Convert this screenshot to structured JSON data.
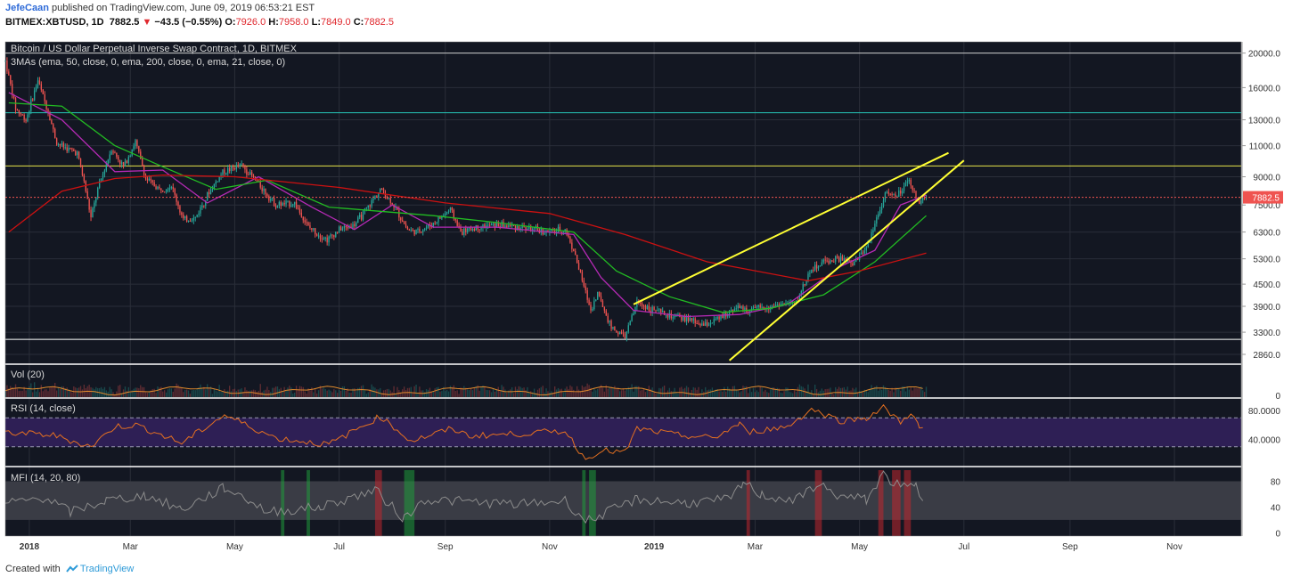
{
  "header": {
    "author": "JefeCaan",
    "published_text": "published on TradingView.com, June 09, 2019 06:53:21 EST",
    "symbol": "BITMEX:XBTUSD, 1D",
    "last": "7882.5",
    "change_arrow": "▼",
    "change": "−43.5 (−0.55%)",
    "open_label": "O:",
    "open": "7926.0",
    "high_label": "H:",
    "high": "7958.0",
    "low_label": "L:",
    "low": "7849.0",
    "close_label": "C:",
    "close": "7882.5"
  },
  "footer": {
    "created_with": "Created with",
    "brand": "TradingView"
  },
  "colors": {
    "background": "#131722",
    "grid": "#2a2e39",
    "up": "#26a69a",
    "down": "#ef5350",
    "ema50": "#22bb22",
    "ema200": "#cc1111",
    "ema21": "#b52ab5",
    "trendline": "#ffff33",
    "level_teal": "#26c6b8",
    "level_yellow": "#e6e44a",
    "volume_ma": "#e08a2c",
    "rsi_line": "#e57020",
    "rsi_band": "#2e1f55",
    "mfi_line": "#8c8c8c",
    "mfi_band": "#3a3c45"
  },
  "chart_data": [
    {
      "type": "candlestick",
      "title": "Bitcoin / US Dollar Perpetual Inverse Swap Contract, 1D, BITMEX",
      "study_label": "3MAs (ema, 50, close, 0, ema, 200, close, 0, ema, 21, close, 0)",
      "y_scale": "log",
      "y_ticks": [
        "20000.0",
        "16000.0",
        "13000.0",
        "11000.0",
        "9000.0",
        "7500.0",
        "6300.0",
        "5300.0",
        "4500.0",
        "3900.0",
        "3300.0",
        "2860.0"
      ],
      "y_tick_values": [
        20000,
        16000,
        13000,
        11000,
        9000,
        7500,
        6300,
        5300,
        4500,
        3900,
        3300,
        2860
      ],
      "last_price_label": "7882.5",
      "last_price": 7882.5,
      "x_ticks": [
        "2018",
        "Mar",
        "May",
        "Jul",
        "Sep",
        "Nov",
        "2019",
        "Mar",
        "May",
        "Jul",
        "Sep",
        "Nov"
      ],
      "x_tick_dates": [
        "2018-01-01",
        "2018-03-01",
        "2018-05-01",
        "2018-07-01",
        "2018-09-01",
        "2018-11-01",
        "2019-01-01",
        "2019-03-01",
        "2019-05-01",
        "2019-07-01",
        "2019-09-01",
        "2019-11-01"
      ],
      "x_range": [
        "2017-12-18",
        "2019-12-10"
      ],
      "y_range": [
        2700,
        21500
      ],
      "price_path": [
        [
          "2017-12-18",
          19000
        ],
        [
          "2017-12-24",
          14000
        ],
        [
          "2017-12-30",
          13000
        ],
        [
          "2018-01-06",
          16800
        ],
        [
          "2018-01-12",
          13700
        ],
        [
          "2018-01-17",
          11200
        ],
        [
          "2018-01-23",
          10800
        ],
        [
          "2018-01-29",
          10500
        ],
        [
          "2018-02-02",
          8700
        ],
        [
          "2018-02-06",
          6900
        ],
        [
          "2018-02-10",
          8300
        ],
        [
          "2018-02-18",
          10800
        ],
        [
          "2018-02-25",
          9600
        ],
        [
          "2018-03-04",
          11300
        ],
        [
          "2018-03-10",
          8900
        ],
        [
          "2018-03-18",
          8300
        ],
        [
          "2018-03-25",
          8500
        ],
        [
          "2018-04-01",
          6800
        ],
        [
          "2018-04-08",
          6900
        ],
        [
          "2018-04-15",
          8000
        ],
        [
          "2018-04-24",
          9300
        ],
        [
          "2018-05-05",
          9700
        ],
        [
          "2018-05-15",
          8600
        ],
        [
          "2018-05-25",
          7500
        ],
        [
          "2018-06-05",
          7600
        ],
        [
          "2018-06-13",
          6500
        ],
        [
          "2018-06-24",
          6000
        ],
        [
          "2018-07-01",
          6400
        ],
        [
          "2018-07-10",
          6600
        ],
        [
          "2018-07-18",
          7400
        ],
        [
          "2018-07-25",
          8300
        ],
        [
          "2018-08-01",
          7600
        ],
        [
          "2018-08-10",
          6400
        ],
        [
          "2018-08-15",
          6300
        ],
        [
          "2018-08-24",
          6600
        ],
        [
          "2018-09-04",
          7300
        ],
        [
          "2018-09-10",
          6300
        ],
        [
          "2018-09-20",
          6500
        ],
        [
          "2018-10-01",
          6600
        ],
        [
          "2018-10-15",
          6500
        ],
        [
          "2018-10-31",
          6300
        ],
        [
          "2018-11-10",
          6400
        ],
        [
          "2018-11-15",
          5600
        ],
        [
          "2018-11-20",
          4600
        ],
        [
          "2018-11-25",
          3800
        ],
        [
          "2018-11-29",
          4250
        ],
        [
          "2018-12-07",
          3400
        ],
        [
          "2018-12-15",
          3200
        ],
        [
          "2018-12-22",
          4000
        ],
        [
          "2019-01-01",
          3800
        ],
        [
          "2019-01-10",
          3650
        ],
        [
          "2019-01-20",
          3600
        ],
        [
          "2019-01-30",
          3450
        ],
        [
          "2019-02-08",
          3600
        ],
        [
          "2019-02-18",
          3900
        ],
        [
          "2019-02-24",
          3800
        ],
        [
          "2019-03-05",
          3850
        ],
        [
          "2019-03-15",
          3950
        ],
        [
          "2019-03-25",
          4000
        ],
        [
          "2019-04-02",
          4900
        ],
        [
          "2019-04-10",
          5200
        ],
        [
          "2019-04-20",
          5300
        ],
        [
          "2019-04-27",
          5100
        ],
        [
          "2019-05-05",
          5700
        ],
        [
          "2019-05-12",
          7100
        ],
        [
          "2019-05-16",
          8100
        ],
        [
          "2019-05-22",
          7900
        ],
        [
          "2019-05-30",
          8700
        ],
        [
          "2019-06-04",
          7700
        ],
        [
          "2019-06-09",
          7882.5
        ]
      ],
      "moving_averages": [
        {
          "name": "ema 21",
          "color": "#b52ab5",
          "points": [
            [
              "2017-12-20",
              15500
            ],
            [
              "2018-01-20",
              13000
            ],
            [
              "2018-02-20",
              9300
            ],
            [
              "2018-03-20",
              9400
            ],
            [
              "2018-04-15",
              7600
            ],
            [
              "2018-05-15",
              9000
            ],
            [
              "2018-06-15",
              7400
            ],
            [
              "2018-07-10",
              6400
            ],
            [
              "2018-08-01",
              7500
            ],
            [
              "2018-08-25",
              6500
            ],
            [
              "2018-10-01",
              6500
            ],
            [
              "2018-11-15",
              6200
            ],
            [
              "2018-12-01",
              4700
            ],
            [
              "2018-12-20",
              3800
            ],
            [
              "2019-01-20",
              3650
            ],
            [
              "2019-02-20",
              3700
            ],
            [
              "2019-03-20",
              3950
            ],
            [
              "2019-04-20",
              5050
            ],
            [
              "2019-05-10",
              5600
            ],
            [
              "2019-05-25",
              7500
            ],
            [
              "2019-06-09",
              8000
            ]
          ]
        },
        {
          "name": "ema 50",
          "color": "#22bb22",
          "points": [
            [
              "2017-12-20",
              14500
            ],
            [
              "2018-01-20",
              14200
            ],
            [
              "2018-02-20",
              11000
            ],
            [
              "2018-03-20",
              9600
            ],
            [
              "2018-04-20",
              8300
            ],
            [
              "2018-05-20",
              8800
            ],
            [
              "2018-06-25",
              7400
            ],
            [
              "2018-07-25",
              7200
            ],
            [
              "2018-08-25",
              7000
            ],
            [
              "2018-10-01",
              6700
            ],
            [
              "2018-11-15",
              6300
            ],
            [
              "2018-12-10",
              4900
            ],
            [
              "2019-01-10",
              4150
            ],
            [
              "2019-02-10",
              3750
            ],
            [
              "2019-03-10",
              3850
            ],
            [
              "2019-04-10",
              4200
            ],
            [
              "2019-05-10",
              5200
            ],
            [
              "2019-06-09",
              7000
            ]
          ]
        },
        {
          "name": "ema 200",
          "color": "#cc1111",
          "points": [
            [
              "2017-12-20",
              6300
            ],
            [
              "2018-01-20",
              8200
            ],
            [
              "2018-02-20",
              8900
            ],
            [
              "2018-03-20",
              9100
            ],
            [
              "2018-05-01",
              9000
            ],
            [
              "2018-07-01",
              8400
            ],
            [
              "2018-09-01",
              7600
            ],
            [
              "2018-11-01",
              7100
            ],
            [
              "2018-12-15",
              6200
            ],
            [
              "2019-02-01",
              5200
            ],
            [
              "2019-04-01",
              4600
            ],
            [
              "2019-05-01",
              4900
            ],
            [
              "2019-06-09",
              5500
            ]
          ]
        }
      ],
      "trendlines": [
        {
          "name": "upper wedge line",
          "points": [
            [
              "2018-12-20",
              3950
            ],
            [
              "2019-06-22",
              10500
            ]
          ]
        },
        {
          "name": "lower wedge line",
          "points": [
            [
              "2019-02-14",
              2750
            ],
            [
              "2019-07-01",
              10000
            ]
          ]
        }
      ],
      "horizontal_levels": [
        {
          "name": "resistance 13600",
          "value": 13600,
          "color": "#26c6b8"
        },
        {
          "name": "resistance 9650",
          "value": 9650,
          "color": "#e6e44a"
        },
        {
          "name": "support 3150",
          "value": 3150,
          "color": "#ffffff"
        },
        {
          "name": "top 20000",
          "value": 20000,
          "color": "#cccccc"
        }
      ]
    },
    {
      "type": "bar",
      "title": "Vol (20)",
      "y_ticks": [
        "0"
      ],
      "y_tick_values": [
        0
      ],
      "note": "daily volume bars with 20-period moving average"
    },
    {
      "type": "line",
      "title": "RSI (14, close)",
      "y_ticks": [
        "80.0000",
        "40.0000"
      ],
      "y_tick_values": [
        80,
        40
      ],
      "band": [
        30,
        70
      ],
      "y_range": [
        5,
        95
      ],
      "points": [
        [
          "2017-12-18",
          50
        ],
        [
          "2018-01-15",
          46
        ],
        [
          "2018-02-06",
          30
        ],
        [
          "2018-02-20",
          58
        ],
        [
          "2018-03-05",
          60
        ],
        [
          "2018-03-31",
          35
        ],
        [
          "2018-04-25",
          74
        ],
        [
          "2018-05-25",
          42
        ],
        [
          "2018-06-25",
          33
        ],
        [
          "2018-07-25",
          72
        ],
        [
          "2018-08-12",
          38
        ],
        [
          "2018-09-05",
          55
        ],
        [
          "2018-09-15",
          45
        ],
        [
          "2018-10-15",
          48
        ],
        [
          "2018-11-10",
          52
        ],
        [
          "2018-11-22",
          12
        ],
        [
          "2018-11-30",
          25
        ],
        [
          "2018-12-15",
          22
        ],
        [
          "2018-12-22",
          55
        ],
        [
          "2019-01-15",
          46
        ],
        [
          "2019-02-05",
          42
        ],
        [
          "2019-02-20",
          62
        ],
        [
          "2019-02-24",
          50
        ],
        [
          "2019-03-20",
          58
        ],
        [
          "2019-04-03",
          82
        ],
        [
          "2019-04-20",
          66
        ],
        [
          "2019-05-05",
          70
        ],
        [
          "2019-05-15",
          84
        ],
        [
          "2019-05-25",
          64
        ],
        [
          "2019-05-31",
          78
        ],
        [
          "2019-06-05",
          56
        ],
        [
          "2019-06-09",
          53
        ]
      ]
    },
    {
      "type": "line",
      "title": "MFI (14, 20, 80)",
      "y_ticks": [
        "80",
        "40",
        "0"
      ],
      "y_tick_values": [
        80,
        40,
        0
      ],
      "band": [
        20,
        80
      ],
      "y_range": [
        -5,
        100
      ],
      "points": [
        [
          "2017-12-18",
          45
        ],
        [
          "2018-01-10",
          55
        ],
        [
          "2018-01-25",
          32
        ],
        [
          "2018-02-15",
          50
        ],
        [
          "2018-03-10",
          58
        ],
        [
          "2018-03-31",
          36
        ],
        [
          "2018-04-25",
          70
        ],
        [
          "2018-05-10",
          50
        ],
        [
          "2018-05-20",
          32
        ],
        [
          "2018-06-20",
          40
        ],
        [
          "2018-07-22",
          66
        ],
        [
          "2018-08-08",
          22
        ],
        [
          "2018-08-20",
          52
        ],
        [
          "2018-09-15",
          48
        ],
        [
          "2018-10-15",
          44
        ],
        [
          "2018-11-10",
          50
        ],
        [
          "2018-11-22",
          18
        ],
        [
          "2018-12-05",
          32
        ],
        [
          "2018-12-22",
          52
        ],
        [
          "2019-01-20",
          46
        ],
        [
          "2019-02-15",
          52
        ],
        [
          "2019-02-22",
          78
        ],
        [
          "2019-03-05",
          58
        ],
        [
          "2019-03-25",
          50
        ],
        [
          "2019-04-06",
          76
        ],
        [
          "2019-04-20",
          56
        ],
        [
          "2019-05-05",
          52
        ],
        [
          "2019-05-15",
          90
        ],
        [
          "2019-05-25",
          70
        ],
        [
          "2019-06-03",
          72
        ],
        [
          "2019-06-09",
          40
        ]
      ],
      "highlight_overbought": [
        [
          "2019-02-24",
          "2019-02-26"
        ],
        [
          "2019-04-05",
          "2019-04-09"
        ],
        [
          "2019-05-12",
          "2019-05-15"
        ],
        [
          "2019-05-20",
          "2019-05-25"
        ],
        [
          "2019-05-27",
          "2019-05-31"
        ],
        [
          "2018-07-22",
          "2018-07-26"
        ]
      ],
      "highlight_oversold": [
        [
          "2018-05-28",
          "2018-05-30"
        ],
        [
          "2018-06-12",
          "2018-06-14"
        ],
        [
          "2018-08-08",
          "2018-08-14"
        ],
        [
          "2018-11-20",
          "2018-11-22"
        ],
        [
          "2018-11-24",
          "2018-11-28"
        ]
      ]
    }
  ]
}
